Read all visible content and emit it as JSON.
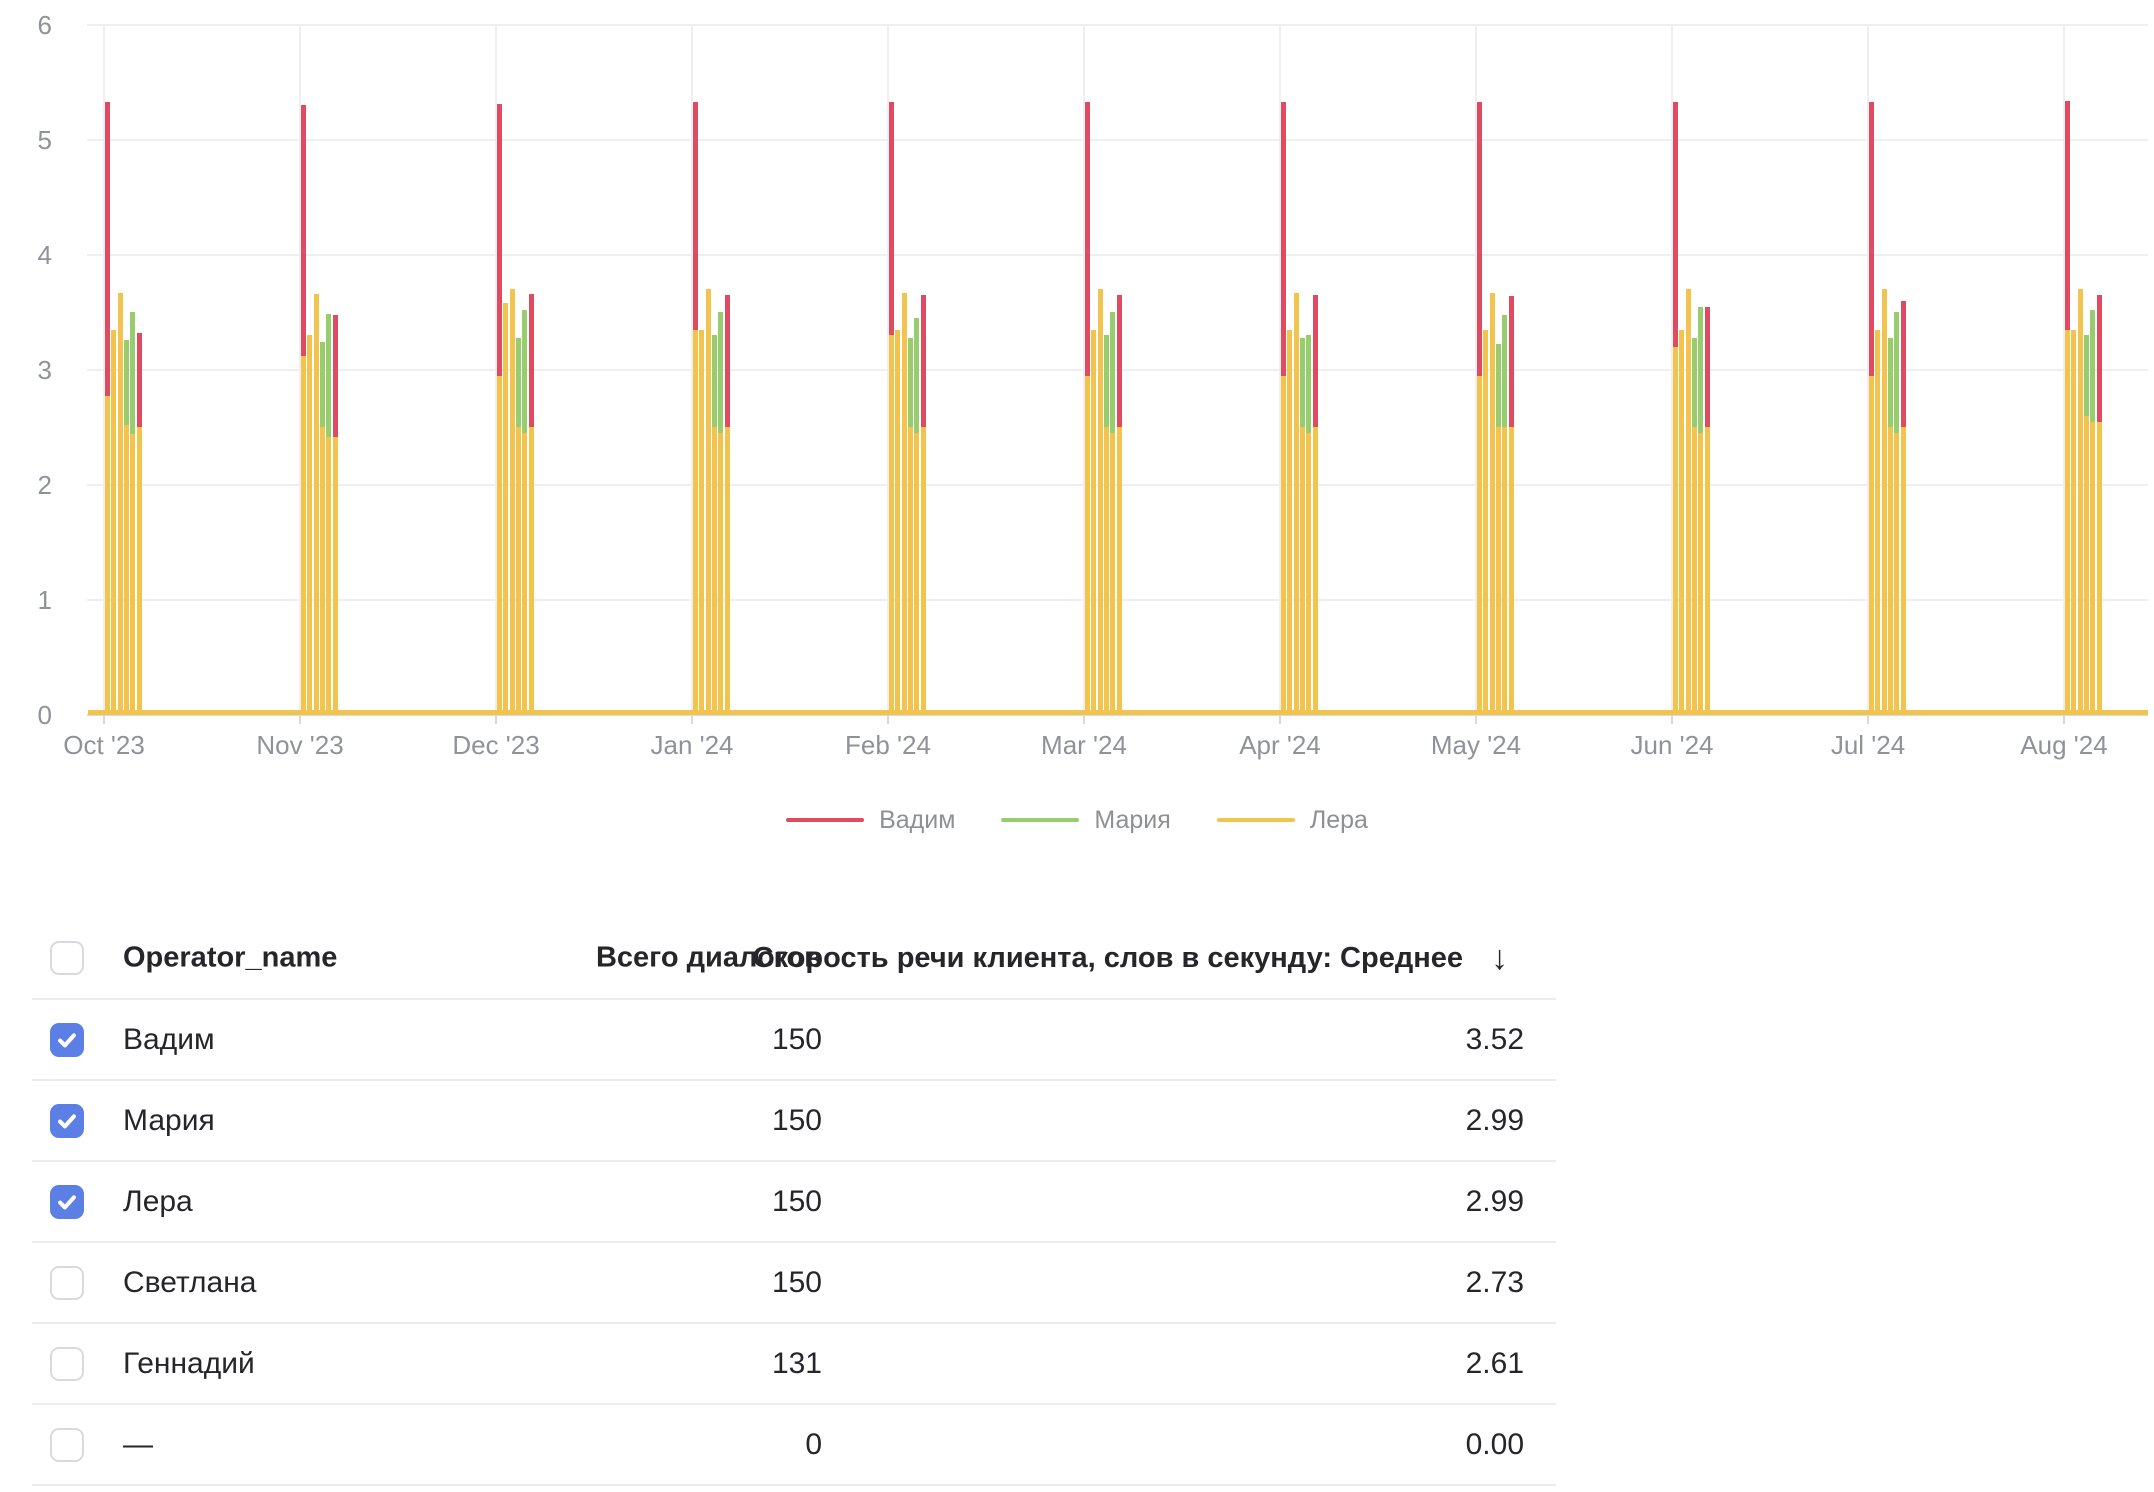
{
  "chart_data": {
    "type": "bar",
    "title": "",
    "xlabel": "",
    "ylabel": "",
    "ylim": [
      0,
      6
    ],
    "y_ticks": [
      0,
      1,
      2,
      3,
      4,
      5,
      6
    ],
    "grid": true,
    "legend_position": "bottom",
    "categories": [
      "Oct '23",
      "Nov '23",
      "Dec '23",
      "Jan '24",
      "Feb '24",
      "Mar '24",
      "Apr '24",
      "May '24",
      "Jun '24",
      "Jul '24",
      "Aug '24"
    ],
    "series_legend": [
      {
        "name": "Вадим",
        "color": "#e04b61"
      },
      {
        "name": "Мария",
        "color": "#97cd6d"
      },
      {
        "name": "Лера",
        "color": "#f2c44e"
      }
    ],
    "baseline": {
      "series": "Лера",
      "value": 0.04
    },
    "clusters": [
      {
        "month": "Oct '23",
        "bars": [
          {
            "series": "Вадим",
            "value": 5.33,
            "front_value": 2.77
          },
          {
            "series": "Лера",
            "value": 3.35
          },
          {
            "series": "Лера",
            "value": 3.67
          },
          {
            "series": "Мария",
            "value": 3.26,
            "front_value": 2.52
          },
          {
            "series": "Мария",
            "value": 3.5,
            "front_value": 2.44
          },
          {
            "series": "Вадим",
            "value": 3.32,
            "front_value": 2.5
          }
        ]
      },
      {
        "month": "Nov '23",
        "bars": [
          {
            "series": "Вадим",
            "value": 5.3,
            "front_value": 3.12
          },
          {
            "series": "Лера",
            "value": 3.3
          },
          {
            "series": "Лера",
            "value": 3.66
          },
          {
            "series": "Мария",
            "value": 3.24,
            "front_value": 2.5
          },
          {
            "series": "Мария",
            "value": 3.49,
            "front_value": 2.42
          },
          {
            "series": "Вадим",
            "value": 3.48,
            "front_value": 2.42
          }
        ]
      },
      {
        "month": "Dec '23",
        "bars": [
          {
            "series": "Вадим",
            "value": 5.31,
            "front_value": 2.95
          },
          {
            "series": "Лера",
            "value": 3.58
          },
          {
            "series": "Лера",
            "value": 3.7
          },
          {
            "series": "Мария",
            "value": 3.28,
            "front_value": 2.5
          },
          {
            "series": "Мария",
            "value": 3.52,
            "front_value": 2.45
          },
          {
            "series": "Вадим",
            "value": 3.66,
            "front_value": 2.5
          }
        ]
      },
      {
        "month": "Jan '24",
        "bars": [
          {
            "series": "Вадим",
            "value": 5.33,
            "front_value": 3.35
          },
          {
            "series": "Лера",
            "value": 3.35
          },
          {
            "series": "Лера",
            "value": 3.7
          },
          {
            "series": "Мария",
            "value": 3.3,
            "front_value": 2.5
          },
          {
            "series": "Мария",
            "value": 3.5,
            "front_value": 2.45
          },
          {
            "series": "Вадим",
            "value": 3.65,
            "front_value": 2.5
          }
        ]
      },
      {
        "month": "Feb '24",
        "bars": [
          {
            "series": "Вадим",
            "value": 5.33,
            "front_value": 3.3
          },
          {
            "series": "Лера",
            "value": 3.35
          },
          {
            "series": "Лера",
            "value": 3.67
          },
          {
            "series": "Мария",
            "value": 3.28,
            "front_value": 2.5
          },
          {
            "series": "Мария",
            "value": 3.45,
            "front_value": 2.45
          },
          {
            "series": "Вадим",
            "value": 3.65,
            "front_value": 2.5
          }
        ]
      },
      {
        "month": "Mar '24",
        "bars": [
          {
            "series": "Вадим",
            "value": 5.33,
            "front_value": 2.95
          },
          {
            "series": "Лера",
            "value": 3.35
          },
          {
            "series": "Лера",
            "value": 3.7
          },
          {
            "series": "Мария",
            "value": 3.3,
            "front_value": 2.5
          },
          {
            "series": "Мария",
            "value": 3.5,
            "front_value": 2.45
          },
          {
            "series": "Вадим",
            "value": 3.65,
            "front_value": 2.5
          }
        ]
      },
      {
        "month": "Apr '24",
        "bars": [
          {
            "series": "Вадим",
            "value": 5.33,
            "front_value": 2.95
          },
          {
            "series": "Лера",
            "value": 3.35
          },
          {
            "series": "Лера",
            "value": 3.67
          },
          {
            "series": "Мария",
            "value": 3.28,
            "front_value": 2.5
          },
          {
            "series": "Мария",
            "value": 3.3,
            "front_value": 2.45
          },
          {
            "series": "Вадим",
            "value": 3.65,
            "front_value": 2.5
          }
        ]
      },
      {
        "month": "May '24",
        "bars": [
          {
            "series": "Вадим",
            "value": 5.33,
            "front_value": 2.95
          },
          {
            "series": "Лера",
            "value": 3.35
          },
          {
            "series": "Лера",
            "value": 3.67
          },
          {
            "series": "Мария",
            "value": 3.23,
            "front_value": 2.5
          },
          {
            "series": "Мария",
            "value": 3.48,
            "front_value": 2.5
          },
          {
            "series": "Вадим",
            "value": 3.64,
            "front_value": 2.5
          }
        ]
      },
      {
        "month": "Jun '24",
        "bars": [
          {
            "series": "Вадим",
            "value": 5.33,
            "front_value": 3.2
          },
          {
            "series": "Лера",
            "value": 3.35
          },
          {
            "series": "Лера",
            "value": 3.7
          },
          {
            "series": "Мария",
            "value": 3.28,
            "front_value": 2.5
          },
          {
            "series": "Мария",
            "value": 3.55,
            "front_value": 2.45
          },
          {
            "series": "Вадим",
            "value": 3.55,
            "front_value": 2.5
          }
        ]
      },
      {
        "month": "Jul '24",
        "bars": [
          {
            "series": "Вадим",
            "value": 5.33,
            "front_value": 2.95
          },
          {
            "series": "Лера",
            "value": 3.35
          },
          {
            "series": "Лера",
            "value": 3.7
          },
          {
            "series": "Мария",
            "value": 3.28,
            "front_value": 2.5
          },
          {
            "series": "Мария",
            "value": 3.5,
            "front_value": 2.45
          },
          {
            "series": "Вадим",
            "value": 3.6,
            "front_value": 2.5
          }
        ]
      },
      {
        "month": "Aug '24",
        "bars": [
          {
            "series": "Вадим",
            "value": 5.34,
            "front_value": 3.35
          },
          {
            "series": "Лера",
            "value": 3.35
          },
          {
            "series": "Лера",
            "value": 3.7
          },
          {
            "series": "Мария",
            "value": 3.3,
            "front_value": 2.6
          },
          {
            "series": "Мария",
            "value": 3.52,
            "front_value": 2.55
          },
          {
            "series": "Вадим",
            "value": 3.65,
            "front_value": 2.55
          }
        ]
      }
    ]
  },
  "table": {
    "columns": [
      "Operator_name",
      "Всего диалогов",
      "Скорость речи клиента, слов в секунду: Среднее"
    ],
    "sort_icon": "↓",
    "rows": [
      {
        "checked": true,
        "name": "Вадим",
        "dialogs": "150",
        "speed": "3.52"
      },
      {
        "checked": true,
        "name": "Мария",
        "dialogs": "150",
        "speed": "2.99"
      },
      {
        "checked": true,
        "name": "Лера",
        "dialogs": "150",
        "speed": "2.99"
      },
      {
        "checked": false,
        "name": "Светлана",
        "dialogs": "150",
        "speed": "2.73"
      },
      {
        "checked": false,
        "name": "Геннадий",
        "dialogs": "131",
        "speed": "2.61"
      },
      {
        "checked": false,
        "name": "—",
        "dialogs": "0",
        "speed": "0.00"
      }
    ]
  },
  "colors": {
    "red": "#e04b61",
    "green": "#97cd6d",
    "yellow": "#f2c44e",
    "checkbox_checked": "#5c7fe6",
    "grid": "#edeff2",
    "axis_line": "#d8dbde",
    "axis_text": "#8f9399"
  }
}
